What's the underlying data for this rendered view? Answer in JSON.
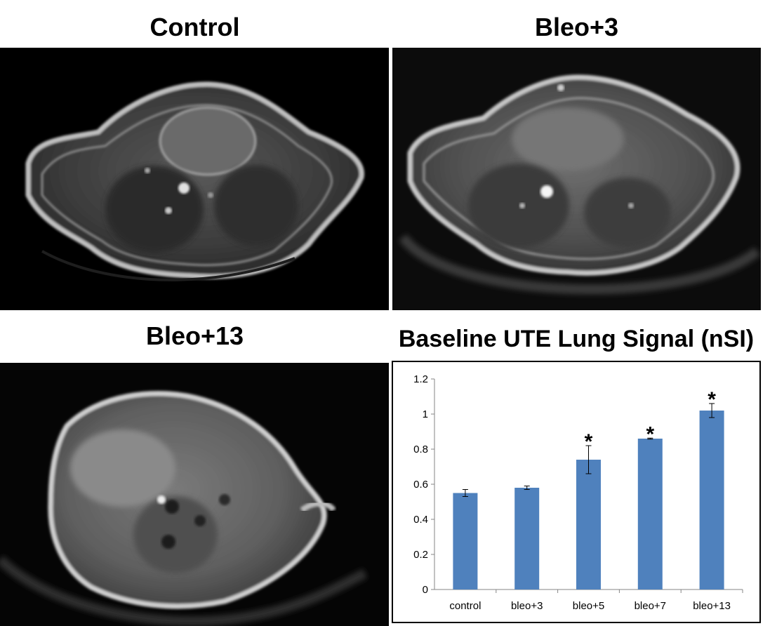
{
  "panels": {
    "control_title": "Control",
    "bleo3_title": "Bleo+3",
    "bleo13_title": "Bleo+13"
  },
  "chart_data": {
    "type": "bar",
    "title": "Baseline UTE Lung Signal (nSI)",
    "categories": [
      "control",
      "bleo+3",
      "bleo+5",
      "bleo+7",
      "bleo+13"
    ],
    "values": [
      0.55,
      0.58,
      0.74,
      0.86,
      1.02
    ],
    "errors": [
      0.02,
      0.01,
      0.08,
      0.003,
      0.04
    ],
    "significant": [
      false,
      false,
      true,
      true,
      true
    ],
    "significance_marker": "*",
    "ylim": [
      0,
      1.2
    ],
    "yticks": [
      0,
      0.2,
      0.4,
      0.6,
      0.8,
      1,
      1.2
    ],
    "ytick_labels": [
      "0",
      "0.2",
      "0.4",
      "0.6",
      "0.8",
      "1",
      "1.2"
    ],
    "bar_color": "#4f81bd",
    "grid": false,
    "xlabel": "",
    "ylabel": ""
  }
}
